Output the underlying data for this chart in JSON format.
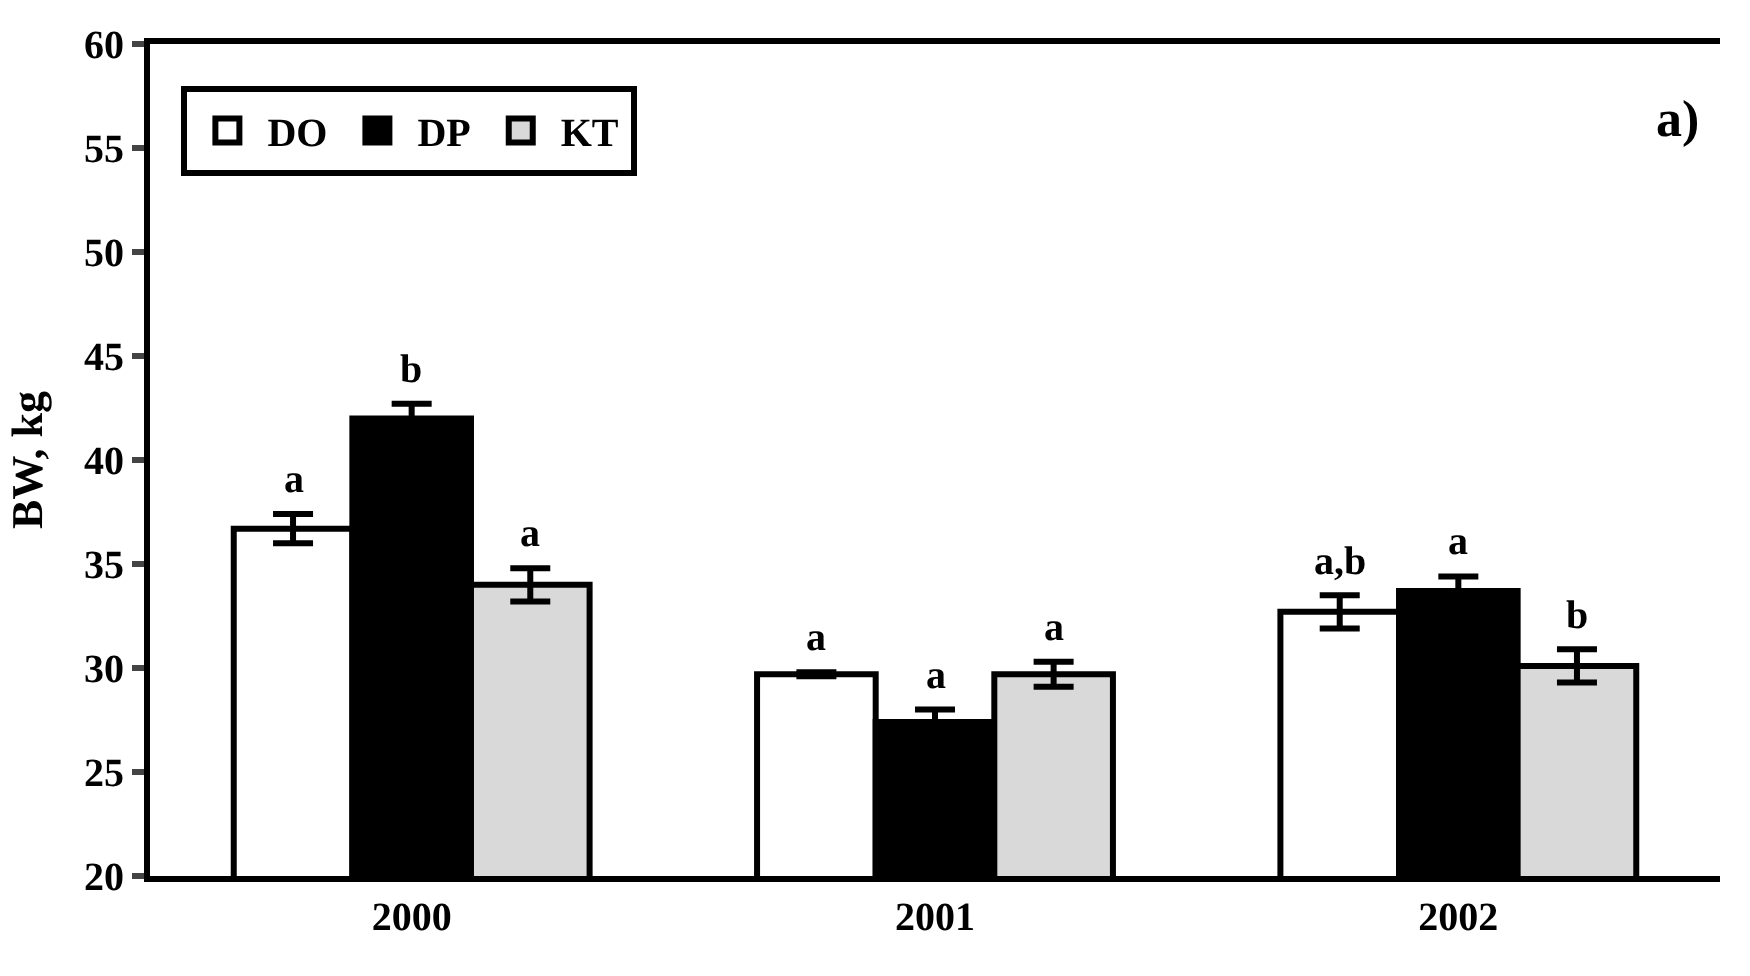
{
  "chart_data": {
    "type": "bar",
    "ylabel": "BW, kg",
    "categories": [
      "2000",
      "2001",
      "2002"
    ],
    "ylim": [
      20,
      60
    ],
    "yticks": [
      20,
      25,
      30,
      35,
      40,
      45,
      50,
      55,
      60
    ],
    "legend": "top left",
    "annotations": [
      "a)"
    ],
    "series": [
      {
        "name": "DO",
        "color": "#ffffff",
        "values": [
          36.7,
          29.7,
          32.7
        ],
        "errors": [
          0.7,
          0.1,
          0.8
        ],
        "value_labels": [
          "a",
          "a",
          "a,b"
        ]
      },
      {
        "name": "DP",
        "color": "#000000",
        "values": [
          42.0,
          27.4,
          33.7
        ],
        "errors": [
          0.7,
          0.6,
          0.7
        ],
        "value_labels": [
          "b",
          "a",
          "a"
        ]
      },
      {
        "name": "KT",
        "color": "#d9d9d9",
        "values": [
          34.0,
          29.7,
          30.1
        ],
        "errors": [
          0.8,
          0.6,
          0.8
        ],
        "value_labels": [
          "a",
          "a",
          "b"
        ]
      }
    ]
  }
}
